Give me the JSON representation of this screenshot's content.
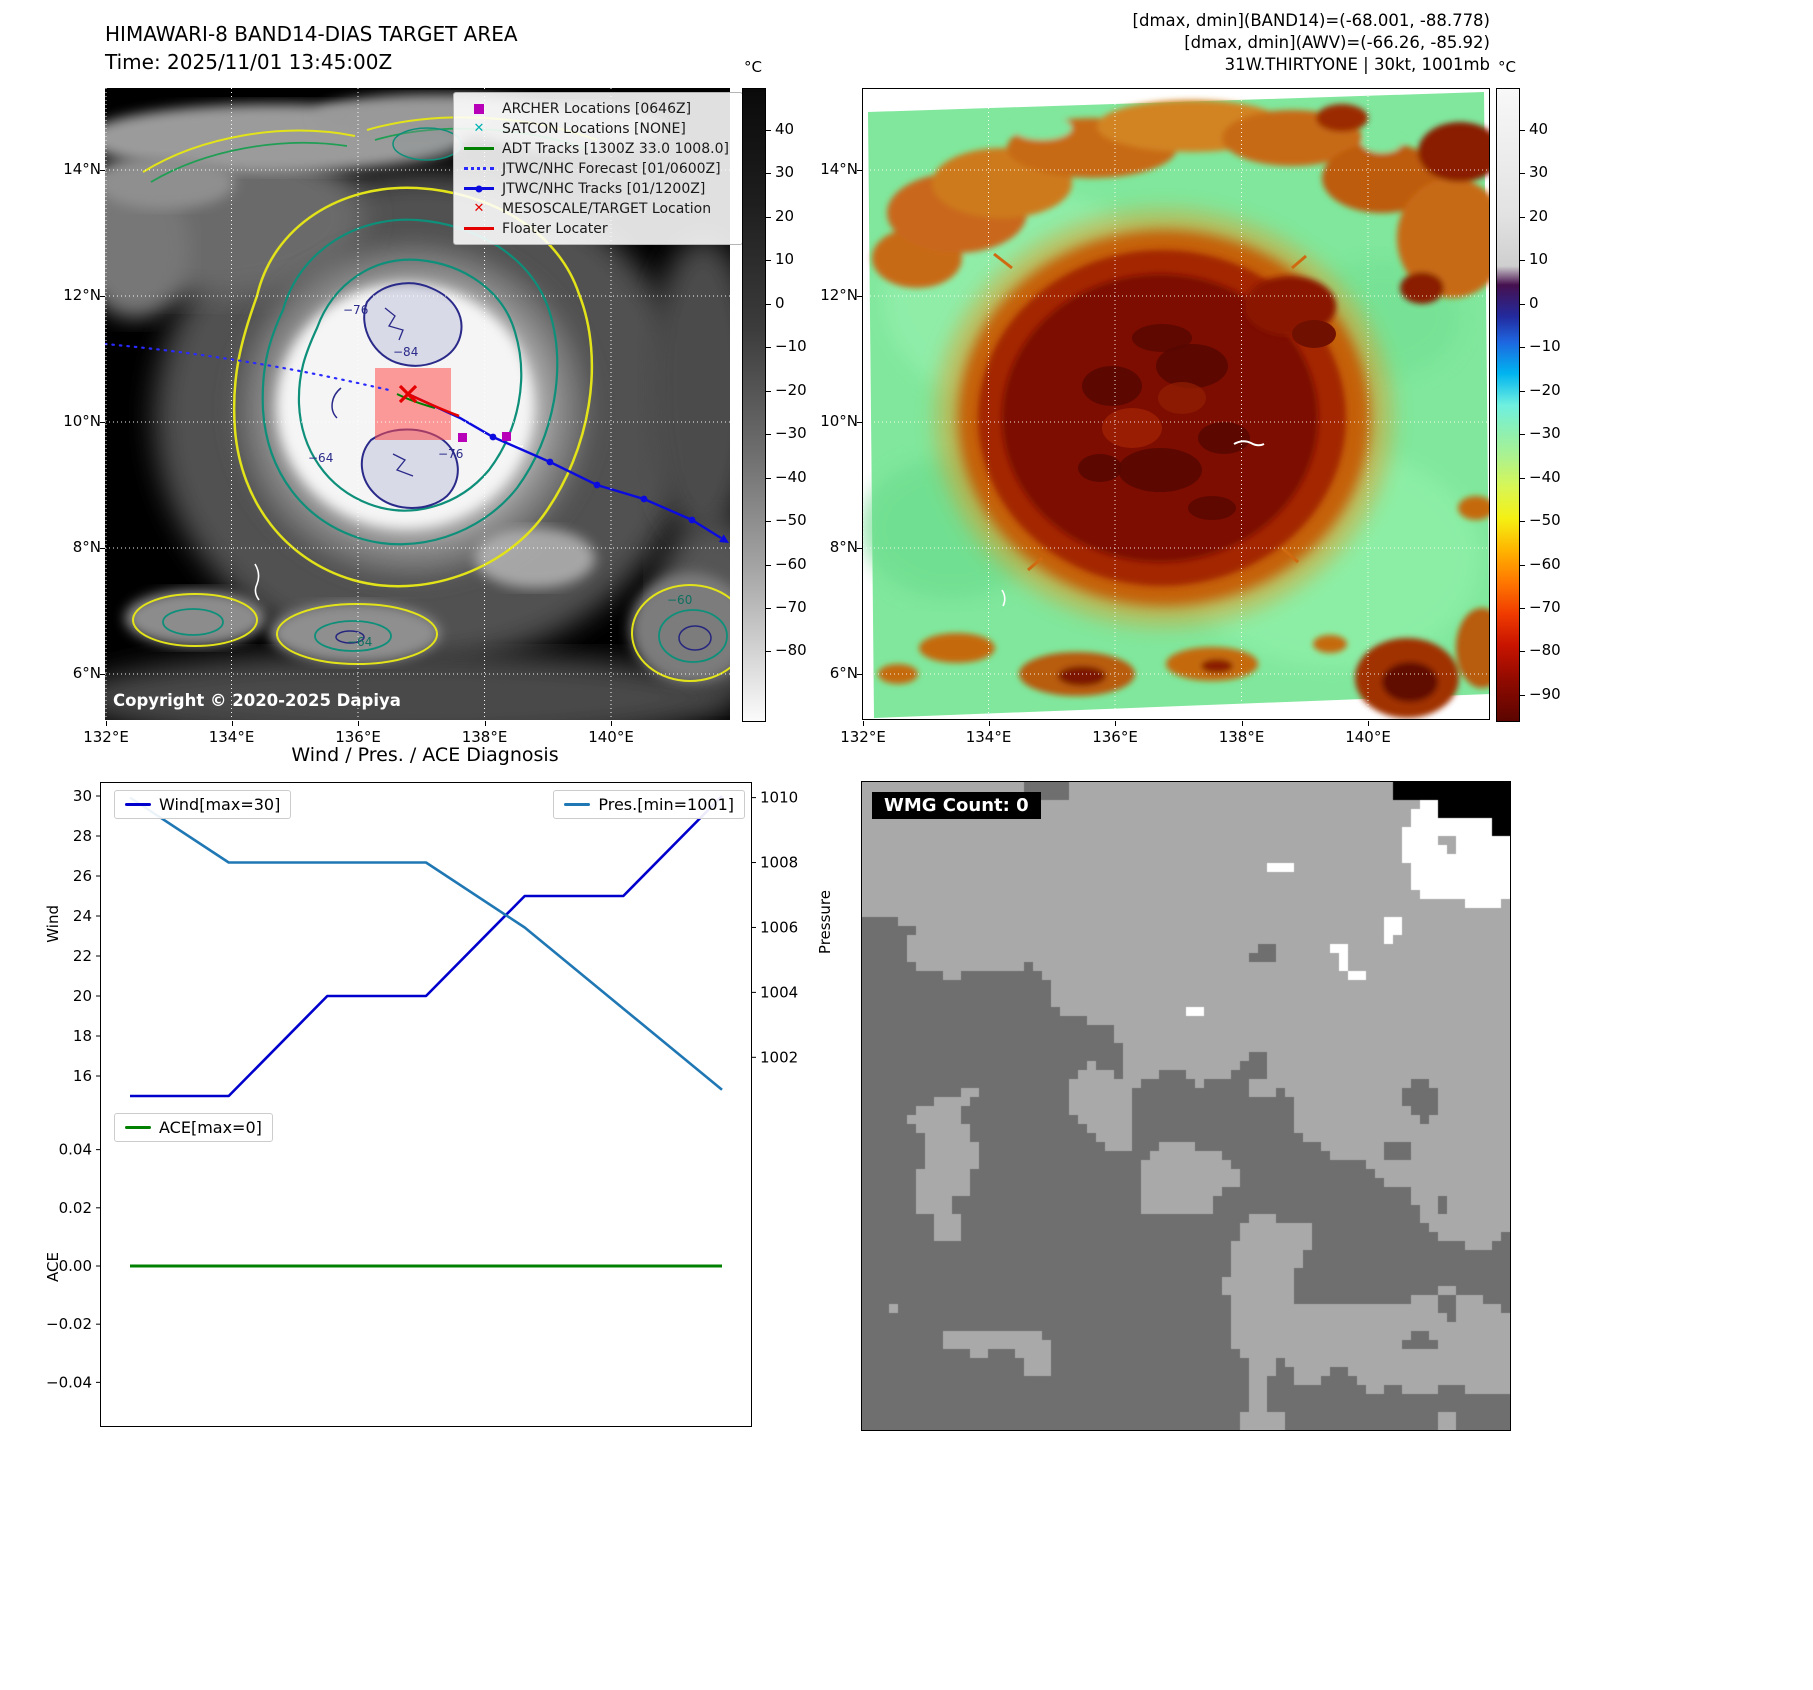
{
  "band14": {
    "title": "HIMAWARI-8 BAND14-DIAS TARGET AREA",
    "time_line": "Time: 2025/11/01 13:45:00Z",
    "copyright": "Copyright © 2020-2025 Dapiya",
    "x_ticks": [
      "132°E",
      "134°E",
      "136°E",
      "138°E",
      "140°E"
    ],
    "y_ticks": [
      "14°N",
      "12°N",
      "10°N",
      "8°N",
      "6°N"
    ],
    "colorbar": {
      "unit": "°C",
      "ticks": [
        "40",
        "30",
        "20",
        "10",
        "0",
        "−10",
        "−20",
        "−30",
        "−40",
        "−50",
        "−60",
        "−70",
        "−80"
      ]
    },
    "legend": [
      {
        "label": "ARCHER Locations [0646Z]",
        "marker": "square",
        "color": "#b800b8"
      },
      {
        "label": "SATCON Locations [NONE]",
        "marker": "x",
        "color": "#00b2b2"
      },
      {
        "label": "ADT Tracks [1300Z 33.0 1008.0]",
        "marker": "line",
        "color": "#008000"
      },
      {
        "label": "JTWC/NHC Forecast [01/0600Z]",
        "marker": "dotted",
        "color": "#2a2aff"
      },
      {
        "label": "JTWC/NHC Tracks [01/1200Z]",
        "marker": "line-marker",
        "color": "#0b0bdf"
      },
      {
        "label": "MESOSCALE/TARGET Location",
        "marker": "x",
        "color": "#e50000"
      },
      {
        "label": "Floater Locater",
        "marker": "line",
        "color": "#e50000"
      }
    ],
    "contour_labels": [
      "−76",
      "−84",
      "−64",
      "−76",
      "−64",
      "−60"
    ]
  },
  "awv": {
    "header_lines": [
      "[dmax, dmin](BAND14)=(-68.001, -88.778)",
      "[dmax, dmin](AWV)=(-66.26, -85.92)",
      "31W.THIRTYONE | 30kt, 1001mb"
    ],
    "x_ticks": [
      "132°E",
      "134°E",
      "136°E",
      "138°E",
      "140°E"
    ],
    "y_ticks": [
      "14°N",
      "12°N",
      "10°N",
      "8°N",
      "6°N"
    ],
    "colorbar": {
      "unit": "°C",
      "ticks": [
        "40",
        "30",
        "20",
        "10",
        "0",
        "−10",
        "−20",
        "−30",
        "−40",
        "−50",
        "−60",
        "−70",
        "−80",
        "−90"
      ]
    }
  },
  "diagnosis": {
    "title": "Wind / Pres. / ACE Diagnosis"
  },
  "wmg": {
    "label": "WMG Count: 0"
  },
  "chart_data": [
    {
      "type": "line",
      "title": "Wind / Pres. / ACE Diagnosis",
      "x": [
        0,
        1,
        2,
        3,
        4,
        5,
        6
      ],
      "series": [
        {
          "name": "Wind[max=30]",
          "axis": "left",
          "color": "#0000cd",
          "values": [
            15,
            15,
            20,
            20,
            25,
            25,
            30
          ]
        },
        {
          "name": "Pres.[min=1001]",
          "axis": "right",
          "color": "#1f77b4",
          "values": [
            1010,
            1008,
            1008,
            1008,
            1006,
            1003.5,
            1001
          ]
        }
      ],
      "ylabel_left": "Wind",
      "ylabel_right": "Pressure",
      "ylim_left": [
        14.5,
        30.65
      ],
      "ylim_right": [
        1000.5,
        1010.45
      ],
      "yticks_left": [
        16,
        18,
        20,
        22,
        24,
        26,
        28,
        30
      ],
      "yticks_right": [
        1002,
        1004,
        1006,
        1008,
        1010
      ],
      "legend_position": "top"
    },
    {
      "type": "line",
      "x": [
        0,
        1,
        2,
        3,
        4,
        5,
        6
      ],
      "series": [
        {
          "name": "ACE[max=0]",
          "color": "#008000",
          "values": [
            0,
            0,
            0,
            0,
            0,
            0,
            0
          ]
        }
      ],
      "ylabel": "ACE",
      "ylim": [
        -0.055,
        0.055
      ],
      "yticks": [
        0.04,
        0.02,
        0,
        -0.02,
        -0.04
      ],
      "ytick_labels": [
        "0.04",
        "0.02",
        "0.00",
        "−0.02",
        "−0.04"
      ]
    }
  ]
}
